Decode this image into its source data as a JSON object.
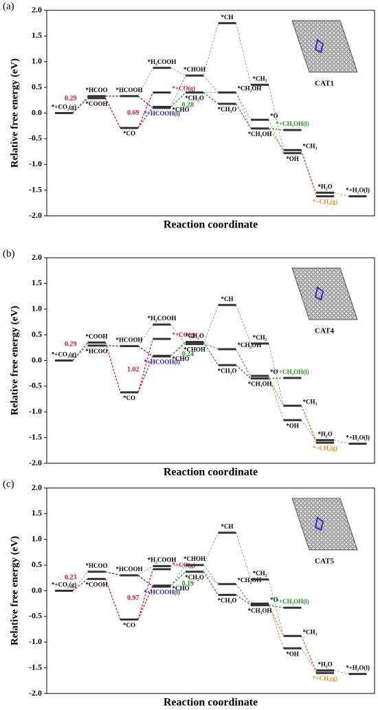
{
  "chart_data": [
    {
      "type": "energy-profile",
      "panel": "(a)",
      "catalyst": "CAT1",
      "ylabel": "Relative free energy (eV)",
      "xlabel": "Reaction coordinate",
      "ylim": [
        -2,
        2
      ],
      "yticks": [
        {
          "value": -2,
          "label": "-2.0"
        },
        {
          "value": -1.5,
          "label": "-1.5"
        },
        {
          "value": -1,
          "label": "-1.0"
        },
        {
          "value": -0.5,
          "label": "-0.5"
        },
        {
          "value": 0,
          "label": "0.0"
        },
        {
          "value": 0.5,
          "label": "0.5"
        },
        {
          "value": 1,
          "label": "1.0"
        },
        {
          "value": 1.5,
          "label": "1.5"
        },
        {
          "value": 2,
          "label": "2.0"
        }
      ],
      "levels": [
        {
          "label": "*+CO₂(g)",
          "value": 0.0
        },
        {
          "label": "*HCOO",
          "value": 0.33
        },
        {
          "label": "*COOH",
          "value": 0.29
        },
        {
          "label": "*HCOOH",
          "value": 0.33
        },
        {
          "label": "*CO",
          "value": -0.29
        },
        {
          "label": "*H₂COOH",
          "value": 0.88
        },
        {
          "label": "*+CO(g)",
          "value": 0.4,
          "color": "#e8141b"
        },
        {
          "label": "*CHO",
          "value": 0.12
        },
        {
          "label": "*+HCOOH(l)",
          "value": 0.1,
          "color": "#2222cc"
        },
        {
          "label": "*CHOH",
          "value": 0.73
        },
        {
          "label": "*CH₂O",
          "value": 0.4
        },
        {
          "label": "*CH",
          "value": 1.75
        },
        {
          "label": "*CH₂OH",
          "value": 0.4
        },
        {
          "label": "*CH₃O",
          "value": 0.18
        },
        {
          "label": "*CH₂",
          "value": 0.55
        },
        {
          "label": "*O",
          "value": -0.13
        },
        {
          "label": "*CH₃OH",
          "value": -0.3
        },
        {
          "label": "*+CH₃OH(l)",
          "value": -0.33,
          "color": "#1a9a1a"
        },
        {
          "label": "*CH₃",
          "value": -0.72
        },
        {
          "label": "*OH",
          "value": -0.78
        },
        {
          "label": "*H₂O",
          "value": -1.55
        },
        {
          "label": "*+CH₄(g)",
          "value": -1.62,
          "color": "#f0901a"
        },
        {
          "label": "*+H₂O(l)",
          "value": -1.62
        }
      ],
      "barriers": [
        {
          "value": 0.29,
          "color": "#e8141b"
        },
        {
          "value": 0.69,
          "color": "#e8141b"
        },
        {
          "value": 0.28,
          "color": "#1a9a1a"
        }
      ]
    },
    {
      "type": "energy-profile",
      "panel": "(b)",
      "catalyst": "CAT4",
      "ylabel": "Relative free energy (eV)",
      "xlabel": "Reaction coordinate",
      "ylim": [
        -2,
        2
      ],
      "yticks": [
        {
          "value": -2,
          "label": "-2.0"
        },
        {
          "value": -1.5,
          "label": "-1.5"
        },
        {
          "value": -1,
          "label": "-1.0"
        },
        {
          "value": -0.5,
          "label": "-0.5"
        },
        {
          "value": 0,
          "label": "0.0"
        },
        {
          "value": 0.5,
          "label": "0.5"
        },
        {
          "value": 1,
          "label": "1.0"
        },
        {
          "value": 1.5,
          "label": "1.5"
        },
        {
          "value": 2,
          "label": "2.0"
        }
      ],
      "levels": [
        {
          "label": "*+CO₂(g)",
          "value": 0.0
        },
        {
          "label": "*HCOO",
          "value": 0.29
        },
        {
          "label": "*COOH",
          "value": 0.35
        },
        {
          "label": "*HCOOH",
          "value": 0.28
        },
        {
          "label": "*CO",
          "value": -0.62
        },
        {
          "label": "*H₂COOH",
          "value": 0.7
        },
        {
          "label": "*+CO(g)",
          "value": 0.42,
          "color": "#e8141b"
        },
        {
          "label": "*CHO",
          "value": 0.09
        },
        {
          "label": "*+HCOOH(l)",
          "value": 0.08,
          "color": "#2222cc"
        },
        {
          "label": "*CHOH",
          "value": 0.32
        },
        {
          "label": "*CH₂O",
          "value": 0.36
        },
        {
          "label": "*CH",
          "value": 1.08
        },
        {
          "label": "*CH₂OH",
          "value": 0.22
        },
        {
          "label": "*CH₃O",
          "value": -0.09
        },
        {
          "label": "*CH₂",
          "value": 0.33
        },
        {
          "label": "*O",
          "value": -0.3
        },
        {
          "label": "*CH₃OH",
          "value": -0.35
        },
        {
          "label": "*+CH₃OH(l)",
          "value": -0.34,
          "color": "#1a9a1a"
        },
        {
          "label": "*CH₃",
          "value": -0.88
        },
        {
          "label": "*OH",
          "value": -1.16
        },
        {
          "label": "*H₂O",
          "value": -1.55
        },
        {
          "label": "*+CH₄(g)",
          "value": -1.6,
          "color": "#f0901a"
        },
        {
          "label": "*+H₂O(l)",
          "value": -1.62
        }
      ],
      "barriers": [
        {
          "value": 0.29,
          "color": "#e8141b"
        },
        {
          "value": 1.02,
          "color": "#e8141b"
        },
        {
          "value": 0.24,
          "color": "#1a9a1a"
        }
      ]
    },
    {
      "type": "energy-profile",
      "panel": "(c)",
      "catalyst": "CAT5",
      "ylabel": "Relative free energy (eV)",
      "xlabel": "Reaction coordinate",
      "ylim": [
        -2,
        2
      ],
      "yticks": [
        {
          "value": -2,
          "label": "-2.0"
        },
        {
          "value": -1.5,
          "label": "-1.5"
        },
        {
          "value": -1,
          "label": "-1.0"
        },
        {
          "value": -0.5,
          "label": "-0.5"
        },
        {
          "value": 0,
          "label": "0.0"
        },
        {
          "value": 0.5,
          "label": "0.5"
        },
        {
          "value": 1,
          "label": "1.0"
        },
        {
          "value": 1.5,
          "label": "1.5"
        },
        {
          "value": 2,
          "label": "2.0"
        }
      ],
      "levels": [
        {
          "label": "*+CO₂(g)",
          "value": 0.0
        },
        {
          "label": "*HCOO",
          "value": 0.37
        },
        {
          "label": "*COOH",
          "value": 0.23
        },
        {
          "label": "*HCOOH",
          "value": 0.3
        },
        {
          "label": "*CO",
          "value": -0.56
        },
        {
          "label": "*H₂COOH",
          "value": 0.48
        },
        {
          "label": "*+CO(g)",
          "value": 0.42,
          "color": "#e8141b"
        },
        {
          "label": "*CHO",
          "value": 0.1
        },
        {
          "label": "*+HCOOH(l)",
          "value": 0.08,
          "color": "#2222cc"
        },
        {
          "label": "*CHOH",
          "value": 0.5
        },
        {
          "label": "*CH₂O",
          "value": 0.37
        },
        {
          "label": "*CH",
          "value": 1.13
        },
        {
          "label": "*CH₂OH",
          "value": 0.13
        },
        {
          "label": "*CH₃O",
          "value": -0.08
        },
        {
          "label": "*CH₂",
          "value": 0.22
        },
        {
          "label": "*O",
          "value": -0.25
        },
        {
          "label": "*CH₃OH",
          "value": -0.28
        },
        {
          "label": "*+CH₃OH(l)",
          "value": -0.33,
          "color": "#1a9a1a"
        },
        {
          "label": "*CH₃",
          "value": -0.88
        },
        {
          "label": "*OH",
          "value": -1.12
        },
        {
          "label": "*H₂O",
          "value": -1.55
        },
        {
          "label": "*+CH₄(g)",
          "value": -1.6,
          "color": "#f0901a"
        },
        {
          "label": "*+H₂O(l)",
          "value": -1.62
        }
      ],
      "barriers": [
        {
          "value": 0.23,
          "color": "#e8141b"
        },
        {
          "value": 0.97,
          "color": "#e8141b"
        },
        {
          "value": 0.19,
          "color": "#1a9a1a"
        }
      ]
    }
  ]
}
